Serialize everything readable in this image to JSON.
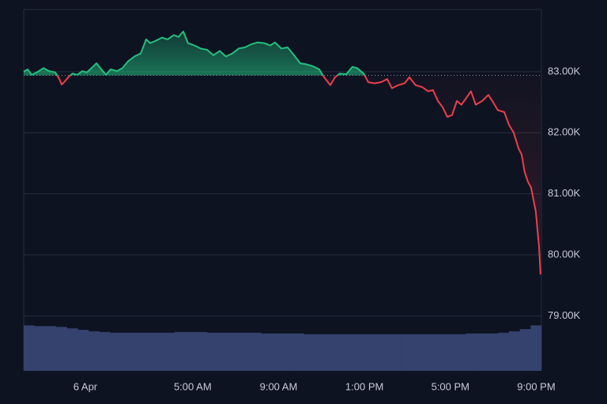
{
  "chart_data": {
    "type": "baseline",
    "x": [
      -2.87,
      -2.69,
      -2.5,
      -2.21,
      -1.95,
      -1.69,
      -1.4,
      -1.21,
      -1.1,
      -0.96,
      -0.77,
      -0.59,
      -0.37,
      -0.15,
      0.07,
      0.29,
      0.52,
      0.74,
      0.96,
      1.18,
      1.47,
      1.73,
      1.99,
      2.28,
      2.58,
      2.83,
      3.02,
      3.24,
      3.57,
      3.83,
      4.12,
      4.34,
      4.56,
      4.78,
      5.08,
      5.37,
      5.67,
      5.96,
      6.26,
      6.55,
      6.85,
      7.14,
      7.43,
      7.73,
      8.02,
      8.32,
      8.61,
      8.83,
      9.13,
      9.42,
      9.72,
      10.01,
      10.31,
      10.6,
      10.89,
      11.12,
      11.41,
      11.63,
      11.85,
      12.15,
      12.44,
      12.66,
      12.96,
      13.18,
      13.47,
      13.77,
      14.06,
      14.28,
      14.57,
      14.87,
      15.09,
      15.38,
      15.68,
      15.97,
      16.19,
      16.42,
      16.64,
      16.86,
      17.08,
      17.3,
      17.52,
      17.74,
      17.96,
      18.18,
      18.48,
      18.77,
      18.99,
      19.21,
      19.51,
      19.73,
      19.95,
      20.17,
      20.32,
      20.46,
      20.61,
      20.76,
      20.98,
      21.13,
      21.2
    ],
    "series": [
      {
        "values": [
          83.0,
          83.04,
          82.95,
          83.0,
          83.06,
          83.01,
          82.99,
          82.88,
          82.79,
          82.84,
          82.92,
          82.97,
          82.95,
          83.01,
          82.99,
          83.06,
          83.14,
          83.04,
          82.95,
          83.04,
          83.01,
          83.06,
          83.17,
          83.25,
          83.3,
          83.53,
          83.47,
          83.5,
          83.56,
          83.53,
          83.6,
          83.57,
          83.66,
          83.47,
          83.43,
          83.38,
          83.36,
          83.27,
          83.34,
          83.25,
          83.3,
          83.38,
          83.4,
          83.45,
          83.48,
          83.47,
          83.43,
          83.48,
          83.38,
          83.4,
          83.27,
          83.14,
          83.12,
          83.09,
          83.04,
          82.91,
          82.78,
          82.91,
          82.97,
          82.96,
          83.08,
          83.06,
          82.97,
          82.83,
          82.81,
          82.83,
          82.88,
          82.73,
          82.78,
          82.81,
          82.91,
          82.78,
          82.75,
          82.68,
          82.7,
          82.52,
          82.42,
          82.26,
          82.29,
          82.52,
          82.46,
          82.57,
          82.68,
          82.46,
          82.52,
          82.62,
          82.5,
          82.37,
          82.34,
          82.13,
          82.0,
          81.75,
          81.64,
          81.36,
          81.2,
          81.1,
          80.71,
          80.14,
          79.68
        ],
        "up_color": "#22c07e",
        "down_color": "#ee3e49"
      }
    ],
    "baseline": 82.94,
    "volume": {
      "color": "#35426e",
      "vlim": [
        0,
        70
      ],
      "values": [
        62,
        61,
        61,
        60,
        58,
        56,
        54,
        53,
        52,
        52,
        52,
        52,
        52,
        52,
        53,
        53,
        53,
        52,
        52,
        52,
        52,
        52,
        51,
        51,
        51,
        51,
        50,
        50,
        50,
        50,
        50,
        50,
        50,
        50,
        50,
        50,
        50,
        50,
        50,
        50,
        50,
        51,
        51,
        51,
        52,
        54,
        57,
        62
      ]
    },
    "xlim": [
      -2.87,
      21.24
    ],
    "xticks": [
      {
        "value": 0,
        "label": "6 Apr"
      },
      {
        "value": 5,
        "label": "5:00 AM"
      },
      {
        "value": 9,
        "label": "9:00 AM"
      },
      {
        "value": 13,
        "label": "1:00 PM"
      },
      {
        "value": 17,
        "label": "5:00 PM"
      },
      {
        "value": 21,
        "label": "9:00 PM"
      }
    ],
    "ylim": [
      78.1,
      84.02
    ],
    "yticks": [
      {
        "value": 79,
        "label": "79.00K"
      },
      {
        "value": 80,
        "label": "80.00K"
      },
      {
        "value": 81,
        "label": "81.00K"
      },
      {
        "value": 82,
        "label": "82.00K"
      },
      {
        "value": 83,
        "label": "83.00K"
      }
    ],
    "grid": true
  }
}
